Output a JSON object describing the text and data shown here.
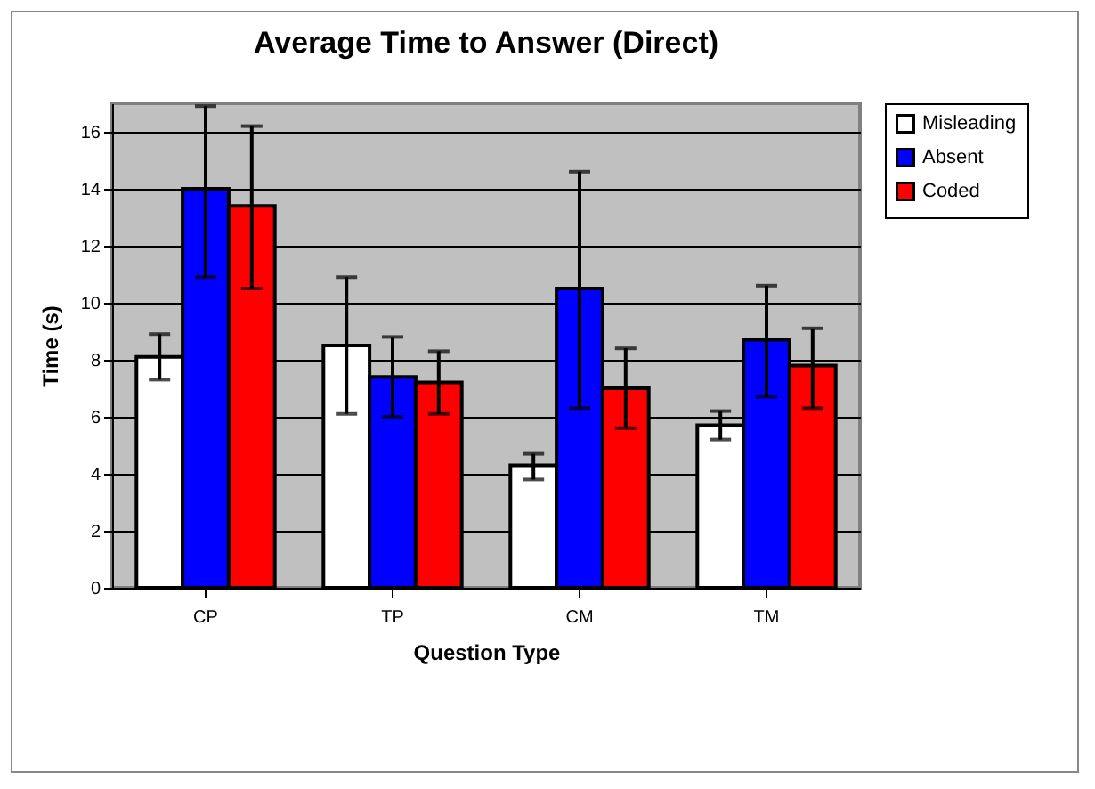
{
  "chart_data": {
    "type": "bar",
    "title": "Average Time to Answer (Direct)",
    "xlabel": "Question Type",
    "ylabel": "Time (s)",
    "categories": [
      "CP",
      "TP",
      "CM",
      "TM"
    ],
    "series": [
      {
        "name": "Misleading",
        "color": "#ffffff",
        "values": [
          8.1,
          8.5,
          4.3,
          5.7
        ],
        "errors": [
          [
            7.3,
            8.9
          ],
          [
            6.1,
            10.9
          ],
          [
            3.8,
            4.7
          ],
          [
            5.2,
            6.2
          ]
        ]
      },
      {
        "name": "Absent",
        "color": "#0000ff",
        "values": [
          14.0,
          7.4,
          10.5,
          8.7
        ],
        "errors": [
          [
            10.9,
            16.9
          ],
          [
            6.0,
            8.8
          ],
          [
            6.3,
            14.6
          ],
          [
            6.7,
            10.6
          ]
        ]
      },
      {
        "name": "Coded",
        "color": "#ff0000",
        "values": [
          13.4,
          7.2,
          7.0,
          7.8
        ],
        "errors": [
          [
            10.5,
            16.2
          ],
          [
            6.1,
            8.3
          ],
          [
            5.6,
            8.4
          ],
          [
            6.3,
            9.1
          ]
        ]
      }
    ],
    "ylim": [
      0,
      17
    ],
    "yticks": [
      0,
      2,
      4,
      6,
      8,
      10,
      12,
      14,
      16
    ],
    "grid": "y",
    "legend": "right"
  }
}
